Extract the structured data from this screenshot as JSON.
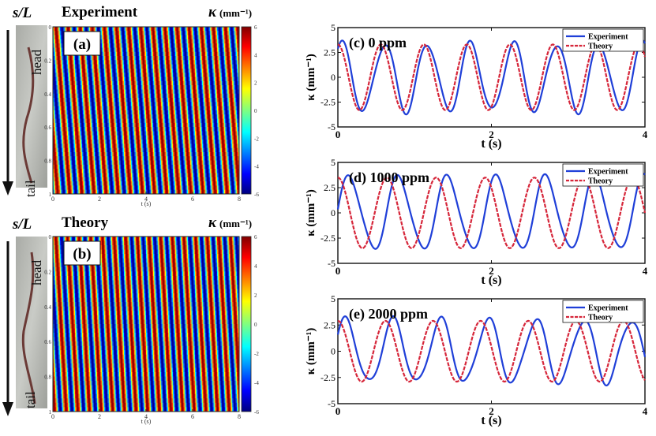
{
  "colors": {
    "experiment_line": "#1f3fd8",
    "theory_line": "#d6263a",
    "worm_photo_bg": "#b8bab5",
    "worm_body": "#6b3a36",
    "arrow": "#111111"
  },
  "left_labels": {
    "sL_label": "s/L",
    "head_label": "head",
    "tail_label": "tail",
    "kappa_symbol": "κ",
    "kappa_unit": "(mm⁻¹)"
  },
  "chart_data": [
    {
      "type": "heatmap",
      "panel": "(a)",
      "title": "Experiment",
      "xlabel": "t (s)",
      "ylabel": "s/L",
      "xlim": [
        0,
        8
      ],
      "ylim": [
        0,
        1
      ],
      "x_ticks": [
        "0",
        "2",
        "4",
        "6",
        "8"
      ],
      "y_ticks": [
        "0",
        "0.2",
        "0.4",
        "0.6",
        "0.8",
        "1"
      ],
      "colorbar_label": "κ (mm⁻¹)",
      "colorbar_range": [
        -6,
        6
      ],
      "colorbar_ticks": [
        "6",
        "4",
        "2",
        "0",
        "-2",
        "-4",
        "-6"
      ],
      "period_s": 0.52,
      "wave_slope_s_per_unit": 0.6
    },
    {
      "type": "heatmap",
      "panel": "(b)",
      "title": "Theory",
      "xlabel": "t (s)",
      "ylabel": "s/L",
      "xlim": [
        0,
        8
      ],
      "ylim": [
        0,
        1
      ],
      "x_ticks": [
        "0",
        "2",
        "4",
        "6",
        "8"
      ],
      "y_ticks": [
        "0",
        "0.2",
        "0.4",
        "0.6",
        "0.8",
        "1"
      ],
      "colorbar_label": "κ (mm⁻¹)",
      "colorbar_range": [
        -6,
        6
      ],
      "colorbar_ticks": [
        "6",
        "4",
        "2",
        "0",
        "-2",
        "-4",
        "-6"
      ],
      "period_s": 0.5,
      "wave_slope_s_per_unit": 0.45
    },
    {
      "type": "line",
      "panel": "(c)",
      "title": "0 ppm",
      "xlabel": "t (s)",
      "ylabel": "κ (mm⁻¹)",
      "xlim": [
        0,
        4
      ],
      "ylim": [
        -5,
        5
      ],
      "x_ticks": [
        "0",
        "2",
        "4"
      ],
      "y_ticks": [
        "5",
        "2.5",
        "0",
        "-2.5",
        "-5"
      ],
      "legend": [
        "Experiment",
        "Theory"
      ],
      "series": [
        {
          "name": "Experiment",
          "amplitude": 3.4,
          "period": 0.56,
          "phase": 0.05
        },
        {
          "name": "Theory",
          "amplitude": 3.3,
          "period": 0.56,
          "phase": 0.0
        }
      ]
    },
    {
      "type": "line",
      "panel": "(d)",
      "title": "1000 ppm",
      "xlabel": "t (s)",
      "ylabel": "κ (mm⁻¹)",
      "xlim": [
        0,
        4
      ],
      "ylim": [
        -5,
        5
      ],
      "x_ticks": [
        "0",
        "2",
        "4"
      ],
      "y_ticks": [
        "5",
        "2.5",
        "0",
        "-2.5",
        "-5"
      ],
      "legend": [
        "Experiment",
        "Theory"
      ],
      "series": [
        {
          "name": "Experiment",
          "amplitude": 3.6,
          "period": 0.64,
          "phase": 0.15
        },
        {
          "name": "Theory",
          "amplitude": 3.5,
          "period": 0.64,
          "phase": 0.0
        }
      ]
    },
    {
      "type": "line",
      "panel": "(e)",
      "title": "2000 ppm",
      "xlabel": "t (s)",
      "ylabel": "κ (mm⁻¹)",
      "xlim": [
        0,
        4
      ],
      "ylim": [
        -5,
        5
      ],
      "x_ticks": [
        "0",
        "2",
        "4"
      ],
      "y_ticks": [
        "5",
        "2.5",
        "0",
        "-2.5",
        "-5"
      ],
      "legend": [
        "Experiment",
        "Theory"
      ],
      "series": [
        {
          "name": "Experiment",
          "amplitude": 3.0,
          "period": 0.62,
          "phase": 0.1
        },
        {
          "name": "Theory",
          "amplitude": 2.9,
          "period": 0.62,
          "phase": 0.0
        }
      ]
    }
  ]
}
